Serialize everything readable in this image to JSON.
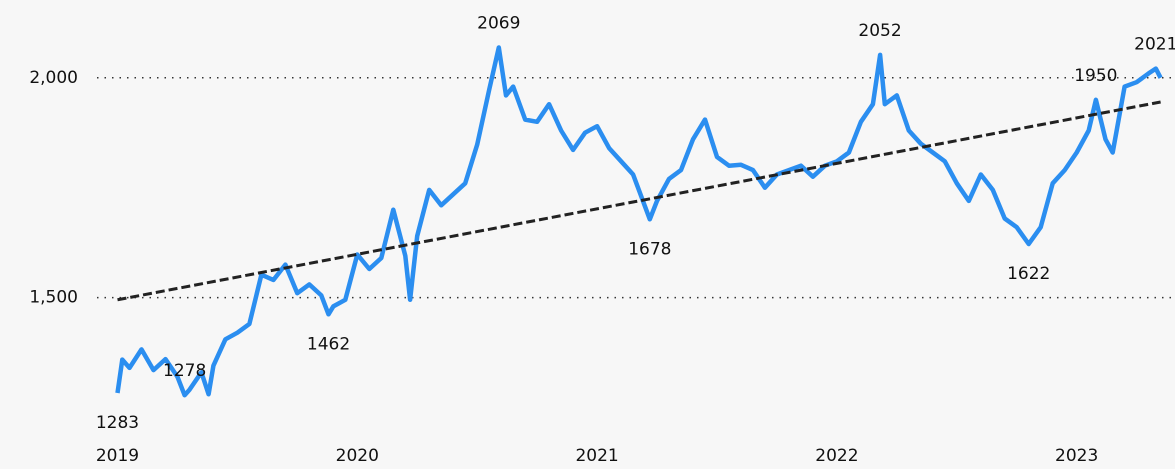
{
  "chart_data": {
    "type": "line",
    "x": [
      2019.0,
      2019.02,
      2019.05,
      2019.1,
      2019.15,
      2019.2,
      2019.25,
      2019.28,
      2019.3,
      2019.35,
      2019.38,
      2019.4,
      2019.45,
      2019.5,
      2019.55,
      2019.6,
      2019.65,
      2019.7,
      2019.75,
      2019.8,
      2019.85,
      2019.88,
      2019.9,
      2019.95,
      2020.0,
      2020.05,
      2020.1,
      2020.15,
      2020.2,
      2020.22,
      2020.25,
      2020.3,
      2020.35,
      2020.4,
      2020.45,
      2020.5,
      2020.55,
      2020.59,
      2020.62,
      2020.65,
      2020.7,
      2020.75,
      2020.8,
      2020.85,
      2020.9,
      2020.95,
      2021.0,
      2021.05,
      2021.1,
      2021.15,
      2021.22,
      2021.25,
      2021.3,
      2021.35,
      2021.4,
      2021.45,
      2021.5,
      2021.55,
      2021.6,
      2021.65,
      2021.7,
      2021.75,
      2021.8,
      2021.85,
      2021.9,
      2021.95,
      2022.0,
      2022.05,
      2022.1,
      2022.15,
      2022.18,
      2022.2,
      2022.25,
      2022.3,
      2022.35,
      2022.4,
      2022.45,
      2022.5,
      2022.55,
      2022.6,
      2022.65,
      2022.7,
      2022.75,
      2022.8,
      2022.85,
      2022.9,
      2022.95,
      2023.0,
      2023.05,
      2023.08,
      2023.12,
      2023.15,
      2023.2,
      2023.25,
      2023.3,
      2023.33,
      2023.35
    ],
    "series": [
      {
        "color": "#2b8ef0",
        "values": [
          1283,
          1359,
          1340,
          1382,
          1335,
          1360,
          1320,
          1278,
          1290,
          1330,
          1280,
          1345,
          1405,
          1420,
          1440,
          1552,
          1540,
          1575,
          1510,
          1530,
          1505,
          1462,
          1480,
          1495,
          1598,
          1565,
          1590,
          1700,
          1595,
          1495,
          1640,
          1745,
          1710,
          1735,
          1760,
          1848,
          1973,
          2069,
          1960,
          1980,
          1905,
          1900,
          1940,
          1880,
          1836,
          1875,
          1890,
          1840,
          1810,
          1780,
          1678,
          1720,
          1770,
          1790,
          1860,
          1905,
          1820,
          1800,
          1802,
          1790,
          1750,
          1780,
          1790,
          1800,
          1775,
          1800,
          1810,
          1830,
          1900,
          1940,
          2052,
          1940,
          1960,
          1880,
          1850,
          1830,
          1810,
          1760,
          1720,
          1780,
          1745,
          1680,
          1660,
          1622,
          1660,
          1760,
          1790,
          1830,
          1880,
          1950,
          1860,
          1830,
          1980,
          1990,
          2010,
          2021,
          2000
        ]
      }
    ],
    "trendline": {
      "color": "#222222",
      "x": [
        2019.0,
        2023.35
      ],
      "values": [
        1495,
        1945
      ]
    },
    "annotations": [
      {
        "x": 2019.0,
        "value": 1283,
        "position": "below"
      },
      {
        "x": 2019.28,
        "value": 1278,
        "position": "above"
      },
      {
        "x": 2019.88,
        "value": 1462,
        "position": "below"
      },
      {
        "x": 2020.59,
        "value": 2069,
        "position": "above"
      },
      {
        "x": 2021.22,
        "value": 1678,
        "position": "below"
      },
      {
        "x": 2022.18,
        "value": 2052,
        "position": "above"
      },
      {
        "x": 2022.8,
        "value": 1622,
        "position": "below"
      },
      {
        "x": 2023.08,
        "value": 1950,
        "position": "above"
      },
      {
        "x": 2023.33,
        "value": 2021,
        "position": "above"
      }
    ],
    "xlim": [
      2018.51,
      2023.41
    ],
    "xticks": [
      2019,
      2020,
      2021,
      2022,
      2023
    ],
    "ylim": [
      1110,
      2177
    ],
    "yticks": [
      {
        "value": 1500,
        "label": "1,500"
      },
      {
        "value": 2000,
        "label": "2,000"
      }
    ],
    "grid": true
  }
}
